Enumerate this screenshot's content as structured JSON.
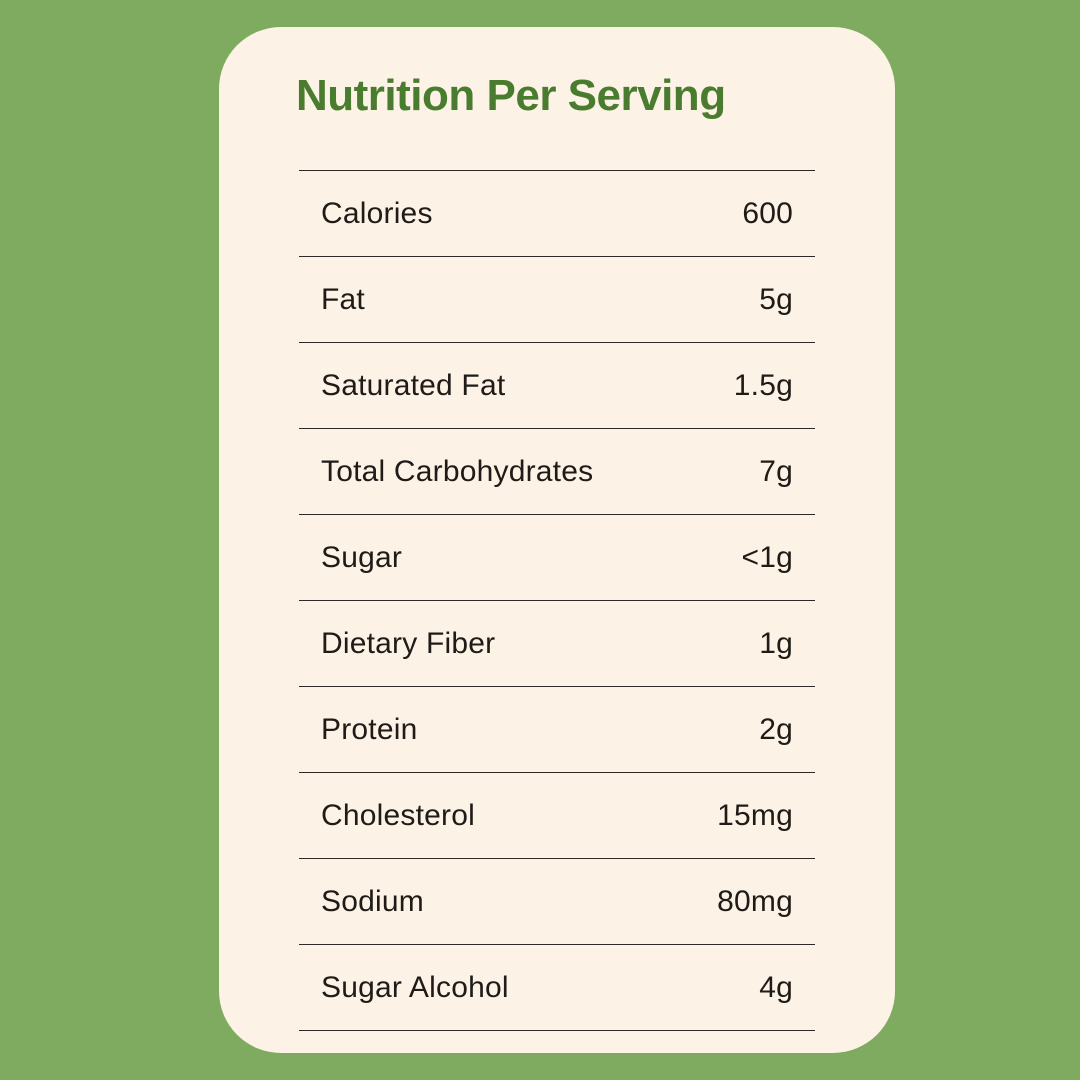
{
  "card": {
    "title": "Nutrition Per Serving",
    "rows": [
      {
        "label": "Calories",
        "value": "600"
      },
      {
        "label": "Fat",
        "value": "5g"
      },
      {
        "label": "Saturated Fat",
        "value": "1.5g"
      },
      {
        "label": "Total Carbohydrates",
        "value": "7g"
      },
      {
        "label": "Sugar",
        "value": "<1g"
      },
      {
        "label": "Dietary Fiber",
        "value": "1g"
      },
      {
        "label": "Protein",
        "value": "2g"
      },
      {
        "label": "Cholesterol",
        "value": "15mg"
      },
      {
        "label": "Sodium",
        "value": "80mg"
      },
      {
        "label": "Sugar Alcohol",
        "value": "4g"
      }
    ]
  },
  "colors": {
    "background": "#7EAB5F",
    "card_background": "#FCF2E5",
    "title_text": "#4A7C2F",
    "body_text": "#1E1B18",
    "divider": "#2E2B27"
  }
}
